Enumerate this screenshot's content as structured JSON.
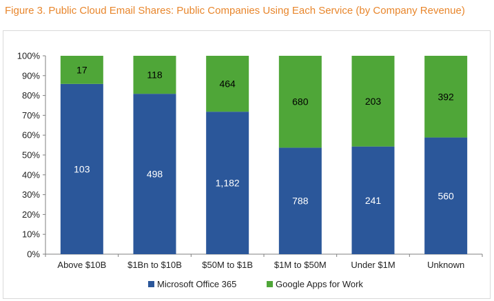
{
  "figure_title": "Figure 3. Public Cloud Email Shares: Public Companies Using Each Service (by Company Revenue)",
  "colors": {
    "microsoft": "#2b579a",
    "google": "#4fa638",
    "title": "#e8862c"
  },
  "chart_data": {
    "type": "bar",
    "stacked": "100%",
    "categories": [
      "Above $10B",
      "$1Bn to $10B",
      "$50M to $1B",
      "$1M to $50M",
      "Under $1M",
      "Unknown"
    ],
    "series": [
      {
        "name": "Microsoft Office 365",
        "values": [
          103,
          498,
          1182,
          788,
          241,
          560
        ],
        "labels": [
          "103",
          "498",
          "1,182",
          "788",
          "241",
          "560"
        ]
      },
      {
        "name": "Google Apps for Work",
        "values": [
          17,
          118,
          464,
          680,
          203,
          392
        ],
        "labels": [
          "17",
          "118",
          "464",
          "680",
          "203",
          "392"
        ]
      }
    ],
    "yticks": [
      "0%",
      "10%",
      "20%",
      "30%",
      "40%",
      "50%",
      "60%",
      "70%",
      "80%",
      "90%",
      "100%"
    ],
    "ylim": [
      0,
      100
    ],
    "legend": "bottom"
  }
}
